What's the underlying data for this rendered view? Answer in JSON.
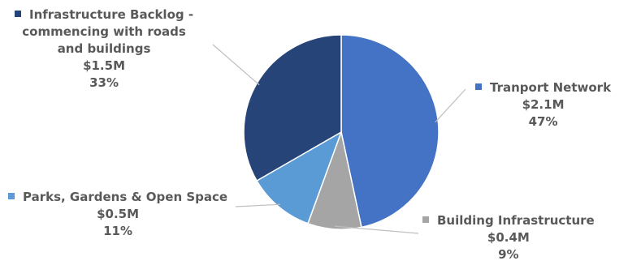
{
  "chart_data": {
    "type": "pie",
    "title": "",
    "start_angle_deg": 0,
    "direction": "clockwise",
    "slices": [
      {
        "name": "Tranport Network",
        "value": 2.1,
        "value_label": "$2.1M",
        "percent": 47,
        "percent_label": "47%",
        "color": "#4472c4"
      },
      {
        "name": "Building Infrastructure",
        "value": 0.4,
        "value_label": "$0.4M",
        "percent": 9,
        "percent_label": "9%",
        "color": "#a5a5a5"
      },
      {
        "name": "Parks, Gardens & Open Space",
        "value": 0.5,
        "value_label": "$0.5M",
        "percent": 11,
        "percent_label": "11%",
        "color": "#5b9bd5"
      },
      {
        "name": "Infrastructure Backlog - commencing with roads and buildings",
        "value": 1.5,
        "value_label": "$1.5M",
        "percent": 33,
        "percent_label": "33%",
        "color": "#264478"
      }
    ],
    "label_lines": {
      "Tranport Network": [
        "Tranport Network"
      ],
      "Building Infrastructure": [
        "Building Infrastructure"
      ],
      "Parks, Gardens & Open Space": [
        "Parks, Gardens & Open Space"
      ],
      "Infrastructure Backlog - commencing with roads and buildings": [
        "Infrastructure Backlog -",
        "commencing with roads",
        "and buildings"
      ]
    },
    "label_text_color": "#595959",
    "leader_line_color": "#bfbfbf",
    "slice_border_color": "#ffffff"
  }
}
